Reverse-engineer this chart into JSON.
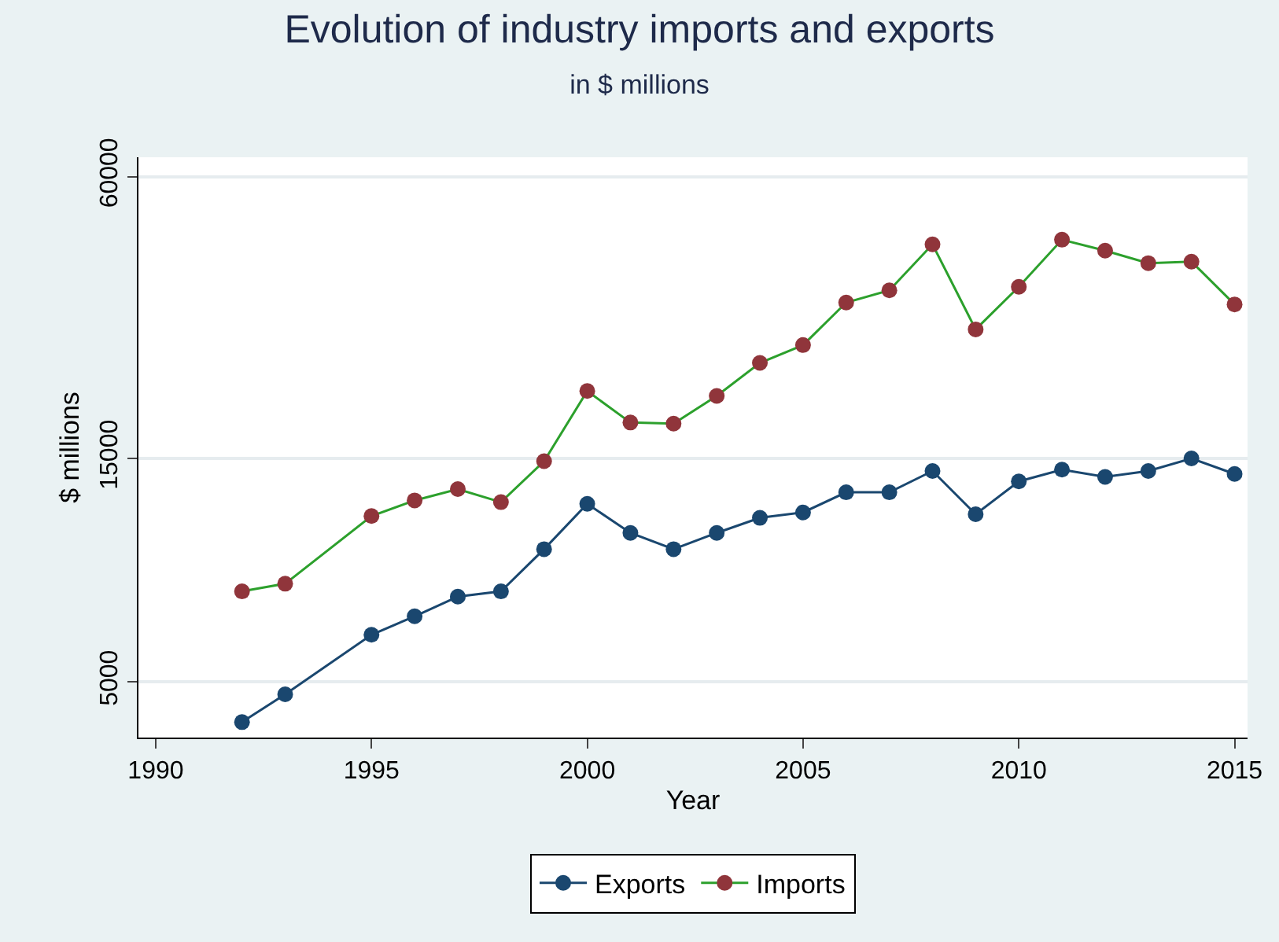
{
  "chart_data": {
    "type": "line",
    "title": "Evolution of industry imports and exports",
    "subtitle": "in $ millions",
    "xlabel": "Year",
    "ylabel": "$ millions",
    "x": [
      1992,
      1993,
      1995,
      1996,
      1997,
      1998,
      1999,
      2000,
      2001,
      2002,
      2003,
      2004,
      2005,
      2006,
      2007,
      2008,
      2009,
      2010,
      2011,
      2012,
      2013,
      2014,
      2015
    ],
    "series": [
      {
        "name": "Exports",
        "color": "#1a476f",
        "values": [
          4100,
          4700,
          6300,
          6900,
          7600,
          7800,
          9600,
          12000,
          10400,
          9600,
          10400,
          11200,
          11500,
          12700,
          12700,
          14100,
          11400,
          13400,
          14200,
          13700,
          14100,
          15000,
          13900
        ]
      },
      {
        "name": "Imports",
        "color": "#2ca02c",
        "colors": [
          "#90353b",
          "#90353b",
          "#90353b",
          "#90353b",
          "#90353b",
          "#90353b",
          "#90353b",
          "#90353b",
          "#90353b",
          "#90353b",
          "#90353b",
          "#90353b",
          "#90353b",
          "#90353b",
          "#90353b",
          "#90353b",
          "#90353b",
          "#90353b",
          "#90353b",
          "#90353b",
          "#90353b",
          "#90353b",
          "#90353b"
        ],
        "values": [
          7800,
          8100,
          11300,
          12200,
          12900,
          12100,
          14800,
          20900,
          17900,
          17800,
          20400,
          24000,
          26200,
          32300,
          34300,
          43000,
          28300,
          34900,
          44000,
          41700,
          39200,
          39500,
          32000
        ]
      }
    ],
    "xlim": [
      1989.6,
      2015.3
    ],
    "xticks": [
      1990,
      1995,
      2000,
      2005,
      2010,
      2015
    ],
    "ylim": [
      3800,
      66000
    ],
    "yticks": [
      5000,
      15000,
      60000
    ],
    "log": true,
    "grid": "y",
    "legend": "bottom",
    "marker": "circle",
    "line_style": "solid"
  }
}
